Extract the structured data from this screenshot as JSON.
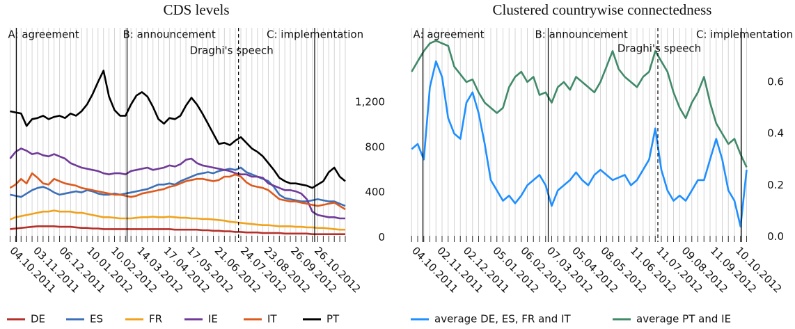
{
  "chart_data": [
    {
      "type": "line",
      "title": "CDS levels",
      "x": [
        "27.09.2011",
        "04.10.2011",
        "11.10.2011",
        "18.10.2011",
        "25.10.2011",
        "01.11.2011",
        "08.11.2011",
        "15.11.2011",
        "22.11.2011",
        "29.11.2011",
        "06.12.2011",
        "13.12.2011",
        "20.12.2011",
        "27.12.2011",
        "03.01.2012",
        "10.01.2012",
        "17.01.2012",
        "24.01.2012",
        "31.01.2012",
        "07.02.2012",
        "14.02.2012",
        "21.02.2012",
        "28.02.2012",
        "06.03.2012",
        "13.03.2012",
        "20.03.2012",
        "27.03.2012",
        "03.04.2012",
        "10.04.2012",
        "17.04.2012",
        "24.04.2012",
        "01.05.2012",
        "08.05.2012",
        "15.05.2012",
        "22.05.2012",
        "29.05.2012",
        "05.06.2012",
        "12.06.2012",
        "19.06.2012",
        "26.06.2012",
        "03.07.2012",
        "10.07.2012",
        "17.07.2012",
        "24.07.2012",
        "31.07.2012",
        "07.08.2012",
        "14.08.2012",
        "21.08.2012",
        "28.08.2012",
        "04.09.2012",
        "11.09.2012",
        "18.09.2012",
        "25.09.2012",
        "02.10.2012",
        "09.10.2012",
        "16.10.2012",
        "23.10.2012",
        "30.10.2012",
        "06.11.2012",
        "13.11.2012",
        "20.11.2012",
        "27.11.2012"
      ],
      "series": [
        {
          "name": "DE",
          "color": "#b5302a",
          "values": [
            75,
            80,
            85,
            90,
            95,
            100,
            100,
            100,
            100,
            95,
            95,
            95,
            90,
            85,
            85,
            80,
            80,
            75,
            75,
            75,
            75,
            75,
            75,
            75,
            75,
            75,
            75,
            75,
            75,
            75,
            70,
            70,
            70,
            70,
            70,
            65,
            65,
            60,
            60,
            55,
            55,
            50,
            50,
            45,
            45,
            45,
            40,
            40,
            40,
            40,
            35,
            35,
            35,
            35,
            35,
            30,
            30,
            30,
            30,
            30,
            30,
            30
          ]
        },
        {
          "name": "ES",
          "color": "#3b6fb6",
          "values": [
            380,
            370,
            360,
            390,
            420,
            440,
            450,
            430,
            400,
            380,
            390,
            400,
            410,
            400,
            420,
            410,
            390,
            380,
            380,
            390,
            380,
            390,
            400,
            410,
            420,
            430,
            450,
            470,
            470,
            480,
            470,
            500,
            520,
            540,
            560,
            570,
            580,
            570,
            590,
            600,
            610,
            600,
            620,
            580,
            560,
            540,
            520,
            500,
            450,
            380,
            350,
            340,
            330,
            320,
            320,
            330,
            340,
            330,
            320,
            320,
            300,
            280
          ]
        },
        {
          "name": "FR",
          "color": "#f0a21c",
          "values": [
            160,
            180,
            190,
            200,
            210,
            220,
            230,
            230,
            240,
            230,
            230,
            230,
            220,
            220,
            210,
            200,
            190,
            180,
            180,
            175,
            170,
            170,
            170,
            175,
            180,
            180,
            185,
            180,
            180,
            185,
            180,
            175,
            175,
            170,
            170,
            165,
            165,
            160,
            155,
            150,
            140,
            135,
            130,
            125,
            120,
            115,
            110,
            110,
            105,
            100,
            100,
            100,
            95,
            95,
            90,
            90,
            85,
            85,
            80,
            75,
            70,
            70
          ]
        },
        {
          "name": "IE",
          "color": "#6f3a98",
          "values": [
            700,
            760,
            790,
            770,
            740,
            750,
            730,
            720,
            740,
            720,
            700,
            660,
            640,
            620,
            610,
            600,
            590,
            570,
            560,
            570,
            570,
            560,
            590,
            600,
            610,
            620,
            600,
            610,
            620,
            640,
            630,
            650,
            690,
            700,
            660,
            640,
            630,
            620,
            610,
            600,
            590,
            570,
            560,
            560,
            540,
            540,
            530,
            480,
            460,
            440,
            420,
            420,
            410,
            390,
            340,
            230,
            200,
            190,
            180,
            180,
            170,
            170
          ]
        },
        {
          "name": "IT",
          "color": "#dc5a1e",
          "values": [
            440,
            470,
            520,
            480,
            570,
            530,
            480,
            470,
            520,
            500,
            480,
            470,
            460,
            440,
            430,
            420,
            410,
            400,
            390,
            380,
            380,
            370,
            360,
            370,
            390,
            400,
            410,
            420,
            430,
            450,
            460,
            480,
            500,
            510,
            520,
            520,
            510,
            500,
            510,
            540,
            540,
            560,
            540,
            490,
            460,
            450,
            440,
            420,
            380,
            340,
            330,
            320,
            320,
            310,
            300,
            290,
            280,
            290,
            300,
            310,
            280,
            250
          ]
        },
        {
          "name": "PT",
          "color": "#000000",
          "values": [
            1120,
            1110,
            1100,
            990,
            1050,
            1060,
            1080,
            1050,
            1070,
            1080,
            1060,
            1100,
            1080,
            1120,
            1180,
            1270,
            1380,
            1480,
            1250,
            1130,
            1080,
            1080,
            1180,
            1260,
            1290,
            1250,
            1160,
            1050,
            1010,
            1060,
            1050,
            1080,
            1170,
            1240,
            1180,
            1100,
            1010,
            920,
            830,
            840,
            820,
            860,
            890,
            840,
            790,
            760,
            720,
            660,
            600,
            530,
            500,
            480,
            480,
            470,
            460,
            440,
            470,
            500,
            580,
            620,
            540,
            500
          ]
        }
      ],
      "xlim": [
        "23.09.2011",
        "05.12.2012"
      ],
      "xticks": [
        "04.10.2011",
        "03.11.2011",
        "06.12.2011",
        "10.01.2012",
        "10.02.2012",
        "14.03.2012",
        "17.04.2012",
        "17.05.2012",
        "21.06.2012",
        "24.07.2012",
        "23.08.2012",
        "26.09.2012",
        "26.10.2012"
      ],
      "ylim": [
        -40,
        1860
      ],
      "yticks": [
        0,
        400,
        800,
        {
          "value": 1200,
          "label": "1,200"
        }
      ],
      "xgrid": true,
      "legend": "bottom",
      "events": [
        {
          "label": "A: agreement",
          "x": "05.10.2011",
          "style": "solid"
        },
        {
          "label": "B: announcement",
          "x": "23.02.2012",
          "style": "solid"
        },
        {
          "label": "Draghi's speech",
          "x": "14.07.2012",
          "style": "dashed"
        },
        {
          "label": "C: implementation",
          "x": "19.10.2012",
          "style": "solid"
        }
      ]
    },
    {
      "type": "line",
      "title": "Clustered countrywise connectedness",
      "x": [
        "27.09.2011",
        "04.10.2011",
        "11.10.2011",
        "18.10.2011",
        "25.10.2011",
        "01.11.2011",
        "08.11.2011",
        "15.11.2011",
        "22.11.2011",
        "29.11.2011",
        "06.12.2011",
        "13.12.2011",
        "20.12.2011",
        "27.12.2011",
        "03.01.2012",
        "10.01.2012",
        "17.01.2012",
        "24.01.2012",
        "31.01.2012",
        "07.02.2012",
        "14.02.2012",
        "21.02.2012",
        "28.02.2012",
        "06.03.2012",
        "13.03.2012",
        "20.03.2012",
        "27.03.2012",
        "03.04.2012",
        "10.04.2012",
        "17.04.2012",
        "24.04.2012",
        "01.05.2012",
        "08.05.2012",
        "15.05.2012",
        "22.05.2012",
        "29.05.2012",
        "05.06.2012",
        "12.06.2012",
        "19.06.2012",
        "26.06.2012",
        "03.07.2012",
        "10.07.2012",
        "17.07.2012",
        "24.07.2012",
        "31.07.2012",
        "07.08.2012",
        "14.08.2012",
        "21.08.2012",
        "28.08.2012",
        "04.09.2012",
        "11.09.2012",
        "18.09.2012",
        "25.09.2012",
        "02.10.2012",
        "09.10.2012",
        "16.10.2012"
      ],
      "series": [
        {
          "name": "average DE, ES, FR and  IT",
          "color": "#1e8fff",
          "values": [
            0.34,
            0.36,
            0.3,
            0.58,
            0.68,
            0.62,
            0.46,
            0.4,
            0.38,
            0.52,
            0.56,
            0.48,
            0.36,
            0.22,
            0.18,
            0.14,
            0.16,
            0.13,
            0.16,
            0.2,
            0.22,
            0.24,
            0.2,
            0.12,
            0.18,
            0.2,
            0.22,
            0.25,
            0.22,
            0.2,
            0.24,
            0.26,
            0.24,
            0.22,
            0.23,
            0.24,
            0.2,
            0.22,
            0.26,
            0.3,
            0.42,
            0.26,
            0.18,
            0.14,
            0.16,
            0.14,
            0.18,
            0.22,
            0.22,
            0.3,
            0.38,
            0.3,
            0.18,
            0.14,
            0.04,
            0.26
          ]
        },
        {
          "name": "average PT and IE",
          "color": "#3f8a68",
          "values": [
            0.64,
            0.68,
            0.72,
            0.75,
            0.76,
            0.75,
            0.74,
            0.66,
            0.63,
            0.6,
            0.61,
            0.56,
            0.52,
            0.5,
            0.48,
            0.5,
            0.58,
            0.62,
            0.64,
            0.6,
            0.62,
            0.55,
            0.56,
            0.52,
            0.58,
            0.6,
            0.57,
            0.62,
            0.6,
            0.58,
            0.56,
            0.6,
            0.66,
            0.72,
            0.65,
            0.62,
            0.6,
            0.58,
            0.62,
            0.64,
            0.72,
            0.68,
            0.64,
            0.56,
            0.5,
            0.46,
            0.52,
            0.56,
            0.62,
            0.52,
            0.44,
            0.4,
            0.36,
            0.38,
            0.32,
            0.27
          ]
        }
      ],
      "xlim": [
        "26.09.2011",
        "26.10.2012"
      ],
      "xticks": [
        "04.10.2011",
        "02.11.2011",
        "02.12.2011",
        "05.01.2012",
        "06.02.2012",
        "07.03.2012",
        "05.04.2012",
        "08.05.2012",
        "11.06.2012",
        "11.07.2012",
        "09.08.2012",
        "11.09.2012",
        "10.10.2012"
      ],
      "ylim": [
        -0.02,
        0.81
      ],
      "yticks": [
        {
          "value": 0,
          "label": "0.0"
        },
        0.2,
        0.4,
        0.6
      ],
      "xgrid": true,
      "legend": "bottom",
      "events": [
        {
          "label": "A: agreement",
          "x": "10.10.2011",
          "style": "solid"
        },
        {
          "label": "B: announcement",
          "x": "02.03.2012",
          "style": "solid"
        },
        {
          "label": "Draghi's speech",
          "x": "06.07.2012",
          "style": "dashed"
        },
        {
          "label": "C: implementation",
          "x": "10.10.2012",
          "style": "solid"
        }
      ]
    }
  ]
}
